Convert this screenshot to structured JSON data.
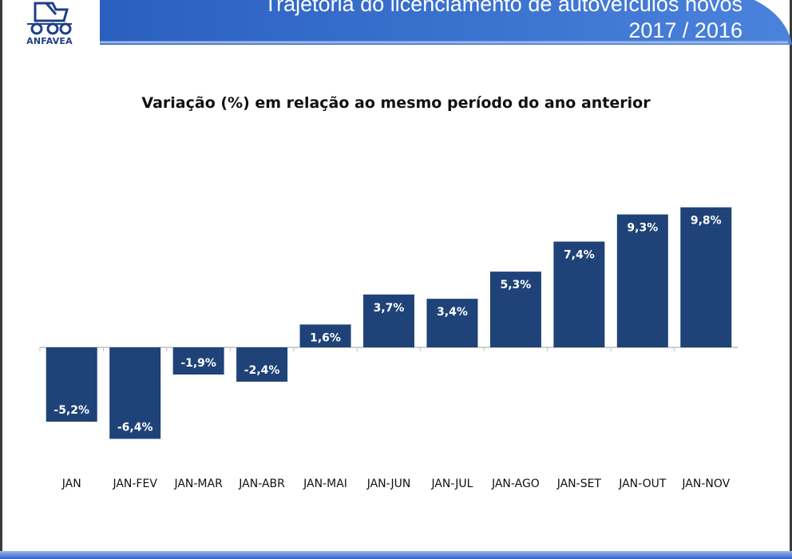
{
  "header": {
    "title": "Trajetória do licenciamento de autoveículos novos",
    "subtitle": "2017 / 2016",
    "logo_text": "ANFAVEA",
    "logo_icon": "truck-icon",
    "band_color": "#2f68c8"
  },
  "chart_data": {
    "type": "bar",
    "title": "Variação (%) em relação ao mesmo período do ano anterior",
    "xlabel": "",
    "ylabel": "",
    "categories": [
      "JAN",
      "JAN-FEV",
      "JAN-MAR",
      "JAN-ABR",
      "JAN-MAI",
      "JAN-JUN",
      "JAN-JUL",
      "JAN-AGO",
      "JAN-SET",
      "JAN-OUT",
      "JAN-NOV"
    ],
    "values": [
      -5.2,
      -6.4,
      -1.9,
      -2.4,
      1.6,
      3.7,
      3.4,
      5.3,
      7.4,
      9.3,
      9.8
    ],
    "data_labels": [
      "-5,2%",
      "-6,4%",
      "-1,9%",
      "-2,4%",
      "1,6%",
      "3,7%",
      "3,4%",
      "5,3%",
      "7,4%",
      "9,3%",
      "9,8%"
    ],
    "ylim": [
      -7.5,
      10.5
    ],
    "grid": false,
    "legend": "none",
    "bar_color": "#1f4378"
  }
}
